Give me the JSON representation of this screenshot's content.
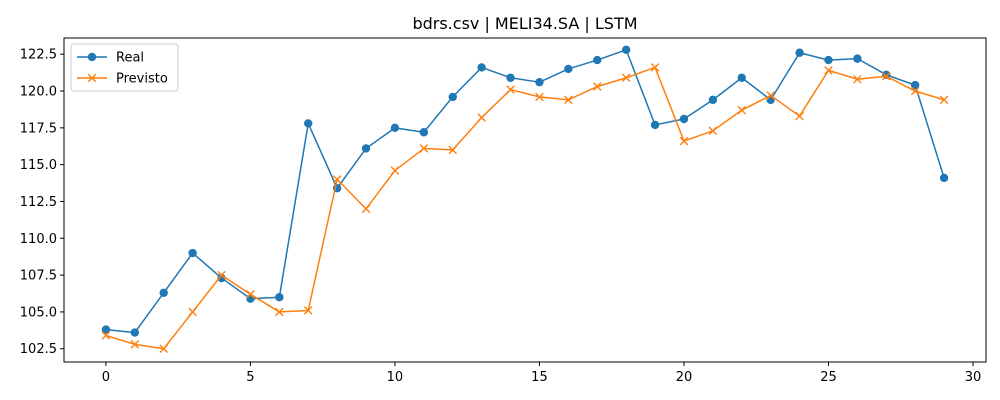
{
  "chart_data": {
    "type": "line",
    "title": "bdrs.csv | MELI34.SA | LSTM",
    "xlabel": "",
    "ylabel": "",
    "xlim": [
      -1.45,
      30.45
    ],
    "ylim": [
      101.6,
      123.6
    ],
    "x_ticks": [
      0,
      5,
      10,
      15,
      20,
      25,
      30
    ],
    "y_ticks": [
      102.5,
      105.0,
      107.5,
      110.0,
      112.5,
      115.0,
      117.5,
      120.0,
      122.5
    ],
    "y_tick_labels": [
      "102.5",
      "105.0",
      "107.5",
      "110.0",
      "112.5",
      "115.0",
      "117.5",
      "120.0",
      "122.5"
    ],
    "grid": false,
    "legend_position": "top-left",
    "x": [
      0,
      1,
      2,
      3,
      4,
      5,
      6,
      7,
      8,
      9,
      10,
      11,
      12,
      13,
      14,
      15,
      16,
      17,
      18,
      19,
      20,
      21,
      22,
      23,
      24,
      25,
      26,
      27,
      28,
      29
    ],
    "series": [
      {
        "name": "Real",
        "color": "#1f77b4",
        "marker": "circle",
        "values": [
          103.8,
          103.6,
          106.3,
          109.0,
          107.3,
          105.9,
          106.0,
          117.8,
          113.4,
          116.1,
          117.5,
          117.2,
          119.6,
          121.6,
          120.9,
          120.6,
          121.5,
          122.1,
          122.8,
          117.7,
          118.1,
          119.4,
          120.9,
          119.4,
          122.6,
          122.1,
          122.2,
          121.1,
          120.4,
          114.1
        ]
      },
      {
        "name": "Previsto",
        "color": "#ff7f0e",
        "marker": "x",
        "values": [
          103.4,
          102.8,
          102.5,
          105.0,
          107.5,
          106.2,
          105.0,
          105.1,
          114.0,
          112.0,
          114.6,
          116.1,
          116.0,
          118.2,
          120.1,
          119.6,
          119.4,
          120.3,
          120.9,
          121.6,
          116.6,
          117.3,
          118.7,
          119.7,
          118.3,
          121.4,
          120.8,
          121.0,
          120.0,
          119.4
        ]
      }
    ]
  }
}
